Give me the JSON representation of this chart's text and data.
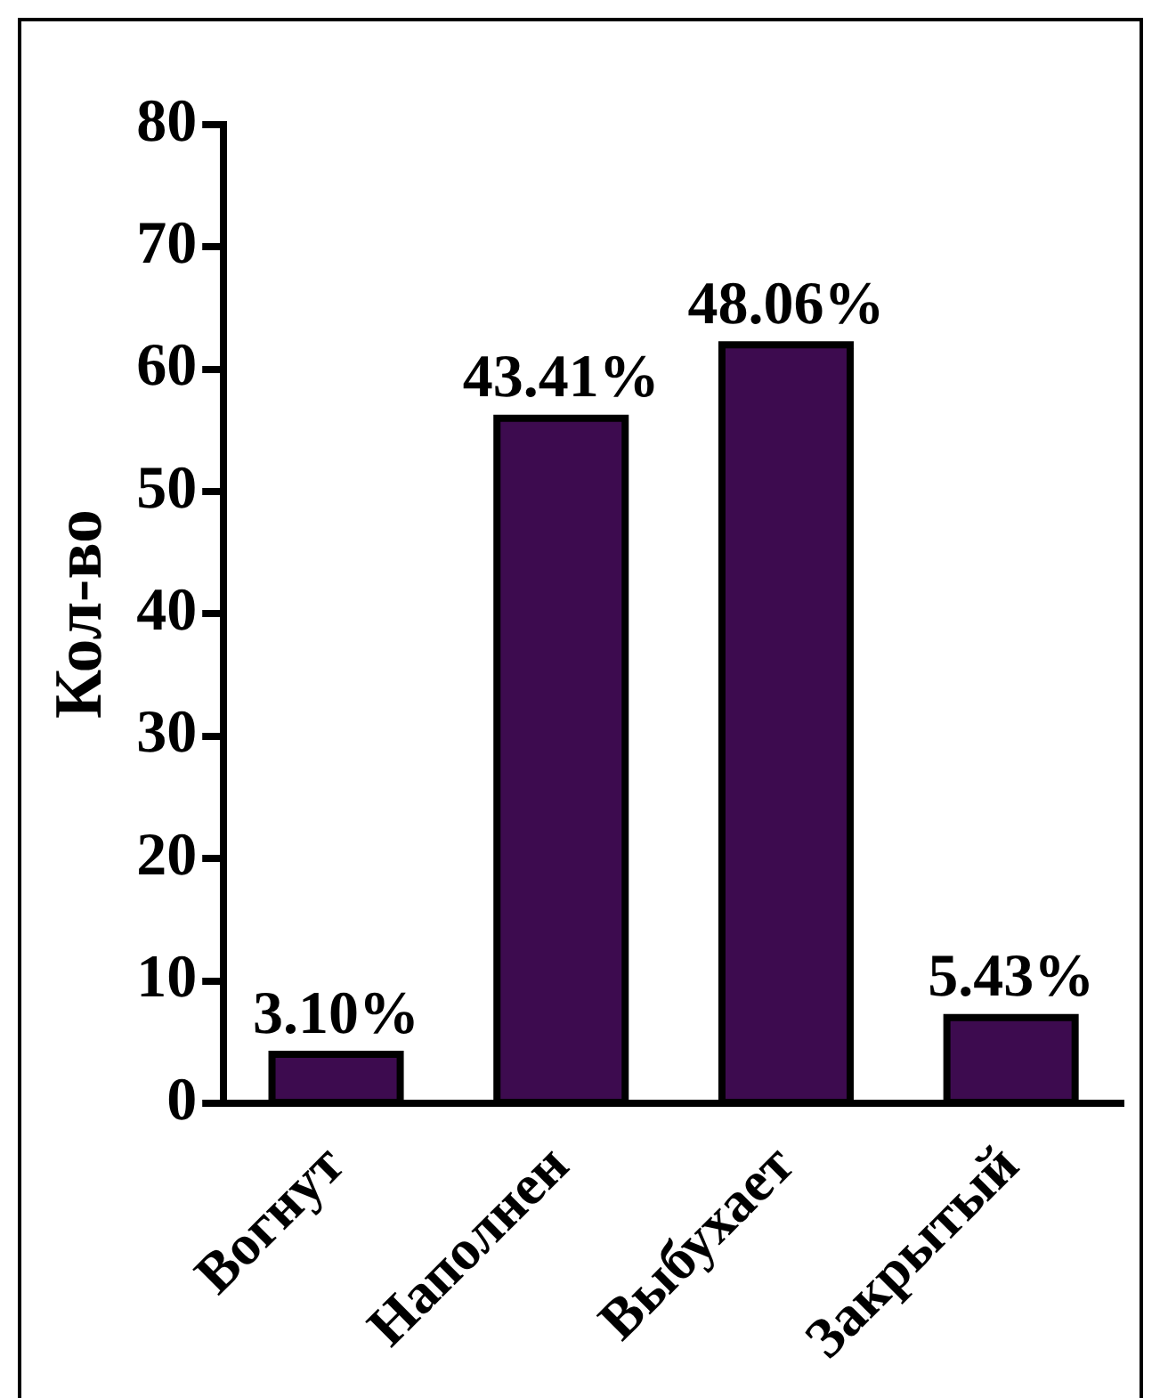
{
  "chart_data": {
    "type": "bar",
    "ylabel": "Кол-во",
    "categories": [
      "Вогнут",
      "Наполнен",
      "Выбухает",
      "Закрытый"
    ],
    "values": [
      4,
      56,
      62,
      7
    ],
    "annotations": [
      {
        "text": "3.10%",
        "x": "Вогнут",
        "y": 4
      },
      {
        "text": "43.41%",
        "x": "Наполнен",
        "y": 56
      },
      {
        "text": "48.06%",
        "x": "Выбухает",
        "y": 62
      },
      {
        "text": "5.43%",
        "x": "Закрытый",
        "y": 7
      }
    ],
    "color": "#3d0b4f",
    "ylim": [
      0,
      80
    ],
    "yticks": [
      0,
      10,
      20,
      30,
      40,
      50,
      60,
      70,
      80
    ],
    "grid": false,
    "legend": false
  }
}
